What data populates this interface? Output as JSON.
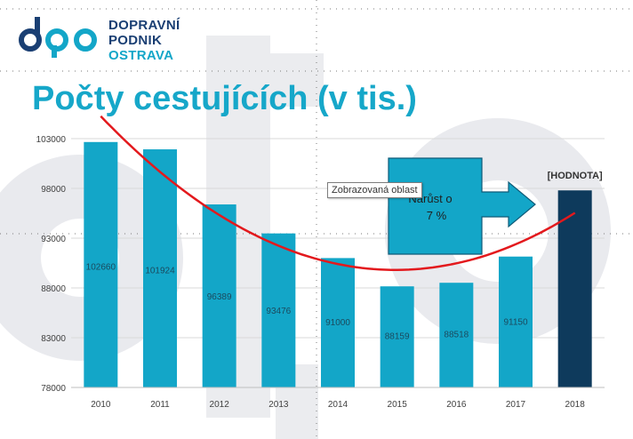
{
  "logo": {
    "line1": "DOPRAVNÍ",
    "line2": "PODNIK",
    "line3": "OSTRAVA",
    "mark_icon": "dpo-logo-mark",
    "colors": {
      "dark": "#1a3f73",
      "light": "#13a6c8"
    }
  },
  "slide": {
    "title": "Počty cestujících (v tis.)",
    "watermark_icon": "dpo-watermark"
  },
  "tooltip": {
    "text": "Zobrazovaná oblast"
  },
  "arrow_callout": {
    "line1": "Nárůst o",
    "line2": "7 %",
    "fill": "#13a6c8"
  },
  "chart_data": {
    "type": "bar",
    "categories": [
      "2010",
      "2011",
      "2012",
      "2013",
      "2014",
      "2015",
      "2016",
      "2017",
      "2018"
    ],
    "values": [
      102660,
      101924,
      96389,
      93476,
      91000,
      88159,
      88518,
      91150,
      97800
    ],
    "data_labels": [
      "102660",
      "101924",
      "96389",
      "93476",
      "91000",
      "88159",
      "88518",
      "91150",
      "[HODNOTA]"
    ],
    "y_ticks": [
      "103000",
      "98000",
      "93000",
      "88000",
      "83000",
      "78000"
    ],
    "ylim": [
      78000,
      103000
    ],
    "grid": true,
    "trendline": {
      "type": "polynomial",
      "color": "#e3191d"
    },
    "colors": {
      "bar": "#13a6c8",
      "highlight_bar": "#0e3a5c"
    }
  }
}
